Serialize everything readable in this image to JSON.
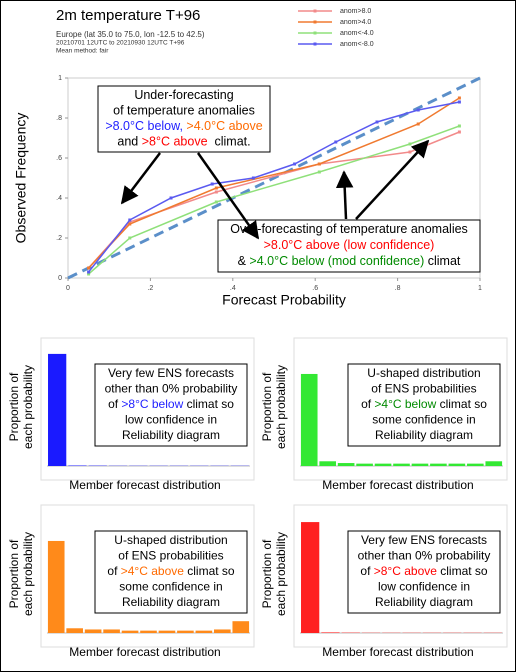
{
  "chart_data": [
    {
      "type": "line",
      "title": "2m temperature T+96",
      "subtitle": [
        "Europe (lat 35.0 to 75.0, lon -12.5 to 42.5)",
        "20210701 12UTC to 20210930 12UTC T+96",
        "Mean method: fair"
      ],
      "x_label": "Forecast Probability",
      "y_label": "Observed Frequency",
      "xlim": [
        0,
        1
      ],
      "ylim": [
        0,
        1
      ],
      "xticks": [
        0,
        {
          "value": 0.2,
          "label": ".2"
        },
        {
          "value": 0.4,
          "label": ".4"
        },
        {
          "value": 0.6,
          "label": ".6"
        },
        {
          "value": 0.8,
          "label": ".8"
        },
        1
      ],
      "yticks": [
        0,
        {
          "value": 0.2,
          "label": ".2"
        },
        {
          "value": 0.4,
          "label": ".4"
        },
        {
          "value": 0.6,
          "label": ".6"
        },
        {
          "value": 0.8,
          "label": ".8"
        },
        1
      ],
      "legend": "upper right",
      "diagonal_color": "#5b8fc9",
      "series": [
        {
          "name": "anom>8.0",
          "color": "#f28a8a",
          "x": [
            0.05,
            0.15,
            0.36,
            0.61,
            0.83,
            0.95
          ],
          "values": [
            0.05,
            0.28,
            0.43,
            0.57,
            0.63,
            0.73
          ]
        },
        {
          "name": "anom>4.0",
          "color": "#f07a30",
          "x": [
            0.05,
            0.15,
            0.36,
            0.61,
            0.85,
            0.95
          ],
          "values": [
            0.05,
            0.27,
            0.45,
            0.57,
            0.77,
            0.9
          ]
        },
        {
          "name": "anom<-4.0",
          "color": "#8fe07a",
          "x": [
            0.05,
            0.15,
            0.36,
            0.61,
            0.83,
            0.95
          ],
          "values": [
            0.02,
            0.2,
            0.38,
            0.53,
            0.67,
            0.76
          ]
        },
        {
          "name": "anom<-8.0",
          "color": "#5a5af0",
          "x": [
            0.05,
            0.15,
            0.25,
            0.35,
            0.45,
            0.55,
            0.65,
            0.75,
            0.85,
            0.95
          ],
          "values": [
            0.03,
            0.29,
            0.4,
            0.47,
            0.5,
            0.57,
            0.68,
            0.78,
            0.84,
            0.88
          ]
        }
      ],
      "annotations": [
        {
          "lines": [
            [
              {
                "text": "Under-forecasting",
                "color": "#000000"
              }
            ],
            [
              {
                "text": "of temperature anomalies",
                "color": "#000000"
              }
            ],
            [
              {
                "text": ">8.0°C below, ",
                "color": "#1f1fff"
              },
              {
                "text": ">4.0°C above",
                "color": "#ff6a00"
              }
            ],
            [
              {
                "text": "and ",
                "color": "#000000"
              },
              {
                "text": ">8°C above",
                "color": "#ff0000"
              },
              {
                "text": "  climat.",
                "color": "#000000"
              }
            ]
          ]
        },
        {
          "lines": [
            [
              {
                "text": "Over-forecasting of temperature anomalies",
                "color": "#000000"
              }
            ],
            [
              {
                "text": ">8.0°C above (low confidence)",
                "color": "#ff0000"
              }
            ],
            [
              {
                "text": "& ",
                "color": "#000000"
              },
              {
                "text": ">4.0°C below (mod confidence)",
                "color": "#008a00"
              },
              {
                "text": " climat",
                "color": "#000000"
              }
            ]
          ]
        }
      ]
    },
    {
      "type": "bar",
      "color": "#1a1aff",
      "x_label": "Member forecast distribution",
      "y_label": [
        "Proportion of",
        "each probability"
      ],
      "ylim": [
        0,
        1
      ],
      "values": [
        0.95,
        0.004,
        0.003,
        0.002,
        0.002,
        0.002,
        0.002,
        0.002,
        0.002,
        0.002
      ],
      "annotations": [
        {
          "lines": [
            [
              {
                "text": "Very few ENS forecasts",
                "color": "#000000"
              }
            ],
            [
              {
                "text": "other than 0% probability",
                "color": "#000000"
              }
            ],
            [
              {
                "text": "of ",
                "color": "#000000"
              },
              {
                "text": ">8°C below",
                "color": "#1f1fff"
              },
              {
                "text": " climat so",
                "color": "#000000"
              }
            ],
            [
              {
                "text": "low confidence in",
                "color": "#000000"
              }
            ],
            [
              {
                "text": "Reliability diagram",
                "color": "#000000"
              }
            ]
          ]
        }
      ]
    },
    {
      "type": "bar",
      "color": "#33e833",
      "x_label": "Member forecast distribution",
      "y_label": [
        "Proportion of",
        "each probability"
      ],
      "ylim": [
        0,
        1
      ],
      "values": [
        0.78,
        0.04,
        0.025,
        0.02,
        0.02,
        0.02,
        0.02,
        0.02,
        0.02,
        0.02,
        0.04
      ],
      "annotations": [
        {
          "lines": [
            [
              {
                "text": "U-shaped distribution",
                "color": "#000000"
              }
            ],
            [
              {
                "text": "of ENS probabilities",
                "color": "#000000"
              }
            ],
            [
              {
                "text": "of ",
                "color": "#000000"
              },
              {
                "text": ">4°C below",
                "color": "#008a00"
              },
              {
                "text": " climat so",
                "color": "#000000"
              }
            ],
            [
              {
                "text": "some confidence in",
                "color": "#000000"
              }
            ],
            [
              {
                "text": "Reliability diagram",
                "color": "#000000"
              }
            ]
          ]
        }
      ]
    },
    {
      "type": "bar",
      "color": "#ff8a1a",
      "x_label": "Member forecast distribution",
      "y_label": [
        "Proportion of",
        "each probability"
      ],
      "ylim": [
        0,
        1
      ],
      "values": [
        0.78,
        0.04,
        0.03,
        0.03,
        0.02,
        0.02,
        0.02,
        0.02,
        0.02,
        0.03,
        0.1
      ],
      "annotations": [
        {
          "lines": [
            [
              {
                "text": "U-shaped distribution",
                "color": "#000000"
              }
            ],
            [
              {
                "text": "of ENS probabilities",
                "color": "#000000"
              }
            ],
            [
              {
                "text": "of ",
                "color": "#000000"
              },
              {
                "text": ">4°C above",
                "color": "#ff6a00"
              },
              {
                "text": " climat so",
                "color": "#000000"
              }
            ],
            [
              {
                "text": "some confidence in",
                "color": "#000000"
              }
            ],
            [
              {
                "text": "Reliability diagram",
                "color": "#000000"
              }
            ]
          ]
        }
      ]
    },
    {
      "type": "bar",
      "color": "#ff2020",
      "x_label": "Member forecast distribution",
      "y_label": [
        "Proportion of",
        "each probability"
      ],
      "ylim": [
        0,
        1
      ],
      "values": [
        0.94,
        0.005,
        0.003,
        0.002,
        0.002,
        0.002,
        0.002,
        0.002,
        0.002,
        0.002
      ],
      "annotations": [
        {
          "lines": [
            [
              {
                "text": "Very few ENS forecasts",
                "color": "#000000"
              }
            ],
            [
              {
                "text": "other than 0% probability",
                "color": "#000000"
              }
            ],
            [
              {
                "text": "of ",
                "color": "#000000"
              },
              {
                "text": ">8°C above",
                "color": "#ff0000"
              },
              {
                "text": " climat so",
                "color": "#000000"
              }
            ],
            [
              {
                "text": "low confidence in",
                "color": "#000000"
              }
            ],
            [
              {
                "text": "Reliability diagram",
                "color": "#000000"
              }
            ]
          ]
        }
      ]
    }
  ]
}
